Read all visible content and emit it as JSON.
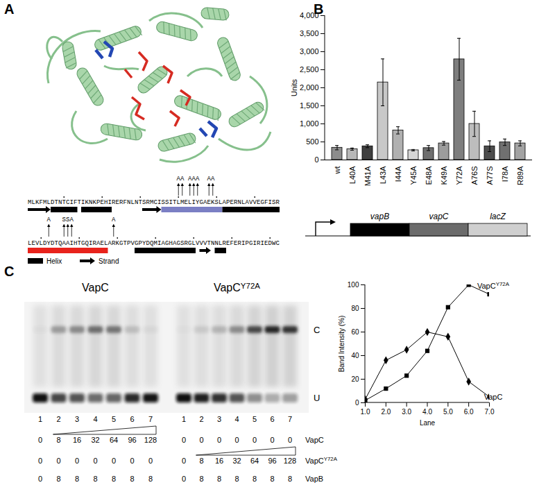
{
  "panel_labels": [
    "A",
    "B",
    "C"
  ],
  "panel_A": {
    "sequence": [
      "MLKFMLDTNTCIFTIKNKPEHIRERFNLNTSRMCISSITLMELIYGAEKSLAPERNLAVVEGFISR",
      "LEVLDYDTQAAIHTGQIRAELARKGTPVGPYDQMIAGHAGSRGLVVVTNNLREFERIPGIRIEDWC"
    ],
    "mutations": [
      {
        "position": 40,
        "label": "A"
      },
      {
        "position": 41,
        "label": "A"
      },
      {
        "position": 43,
        "label": "A"
      },
      {
        "position": 44,
        "label": "A"
      },
      {
        "position": 45,
        "label": "A"
      },
      {
        "position": 48,
        "label": "A"
      },
      {
        "position": 49,
        "label": "A"
      },
      {
        "position": 72,
        "label": "A"
      },
      {
        "position": 76,
        "label": "S"
      },
      {
        "position": 77,
        "label": "S"
      },
      {
        "position": 78,
        "label": "A"
      },
      {
        "position": 89,
        "label": "A"
      }
    ],
    "secondary_structure": [
      {
        "type": "strand",
        "start": 1,
        "end": 6,
        "color": "#000000"
      },
      {
        "type": "helix",
        "start": 7,
        "end": 13,
        "color": "#000000"
      },
      {
        "type": "helix",
        "start": 15,
        "end": 22,
        "color": "#000000"
      },
      {
        "type": "strand",
        "start": 31,
        "end": 35,
        "color": "#000000"
      },
      {
        "type": "helix",
        "start": 36,
        "end": 51,
        "color": "#7b7fc4"
      },
      {
        "type": "helix",
        "start": 52,
        "end": 66,
        "color": "#000000"
      },
      {
        "type": "helix",
        "start": 67,
        "end": 87,
        "color": "#e8231c"
      },
      {
        "type": "helix",
        "start": 95,
        "end": 110,
        "color": "#000000"
      },
      {
        "type": "strand",
        "start": 112,
        "end": 114,
        "color": "#000000"
      },
      {
        "type": "helix",
        "start": 116,
        "end": 118,
        "color": "#000000"
      }
    ],
    "legend": [
      {
        "type": "helix",
        "label": "Helix"
      },
      {
        "type": "strand",
        "label": "Strand"
      }
    ]
  },
  "chart_data": [
    {
      "type": "bar",
      "y_label": "Units",
      "categories": [
        "wt",
        "L40A",
        "M41A",
        "L43A",
        "I44A",
        "Y45A",
        "E48A",
        "K49A",
        "Y72A",
        "A76S",
        "A77S",
        "I78A",
        "R89A"
      ],
      "values": [
        340,
        300,
        380,
        2150,
        820,
        270,
        330,
        460,
        2790,
        1000,
        380,
        490,
        460
      ],
      "errors": [
        60,
        30,
        40,
        650,
        100,
        20,
        70,
        50,
        580,
        350,
        150,
        90,
        70
      ],
      "colors": [
        "#8c8c8c",
        "#b8b8b8",
        "#3f3f3f",
        "#c8c8c8",
        "#b0b0b0",
        "#d6d6d6",
        "#6e6e6e",
        "#9c9c9c",
        "#7e7e7e",
        "#bdbdbd",
        "#4d4d4d",
        "#707070",
        "#a3a3a3"
      ],
      "ylim": [
        0,
        4000
      ],
      "yticks": [
        0,
        500,
        1000,
        1500,
        2000,
        2500,
        3000,
        3500,
        4000
      ],
      "grid": false
    },
    {
      "type": "line",
      "x_label": "Lane",
      "y_label": "Band Intensity (%)",
      "x": [
        1,
        2,
        3,
        4,
        5,
        6,
        7
      ],
      "xlim": [
        1,
        7
      ],
      "xticks": [
        1,
        2,
        3,
        4,
        5,
        6,
        7
      ],
      "ylim": [
        0,
        100
      ],
      "yticks": [
        0,
        20,
        40,
        60,
        80,
        100
      ],
      "grid": false,
      "series": [
        {
          "name": "VapC",
          "color": "#000000",
          "marker": "diamond",
          "values": [
            3,
            36,
            45,
            60,
            56,
            18,
            5
          ]
        },
        {
          "name": "VapCY72A",
          "color": "#000000",
          "marker": "square",
          "values": [
            2,
            12,
            23,
            44,
            81,
            100,
            92
          ]
        }
      ]
    }
  ],
  "panel_B_construct": {
    "genes": [
      {
        "label": "vapB",
        "color": "#000000"
      },
      {
        "label": "vapC",
        "color": "#6b6b6b"
      },
      {
        "label": "lacZ",
        "color": "#cfcfcf"
      }
    ]
  },
  "panel_C_gel": {
    "groups": [
      {
        "label": "VapC"
      },
      {
        "label": "VapCY72A"
      }
    ],
    "lane_numbers": [
      1,
      2,
      3,
      4,
      5,
      6,
      7,
      1,
      2,
      3,
      4,
      5,
      6,
      7
    ],
    "band_labels": [
      "C",
      "U"
    ],
    "rows": [
      {
        "label": "VapC",
        "values": [
          0,
          8,
          16,
          32,
          64,
          96,
          128,
          0,
          0,
          0,
          0,
          0,
          0,
          0
        ]
      },
      {
        "label": "VapCY72A",
        "values": [
          0,
          0,
          0,
          0,
          0,
          0,
          0,
          0,
          8,
          16,
          32,
          64,
          96,
          128
        ]
      },
      {
        "label": "VapB",
        "values": [
          0,
          8,
          8,
          8,
          8,
          8,
          8,
          0,
          8,
          8,
          8,
          8,
          8,
          8
        ]
      }
    ]
  }
}
